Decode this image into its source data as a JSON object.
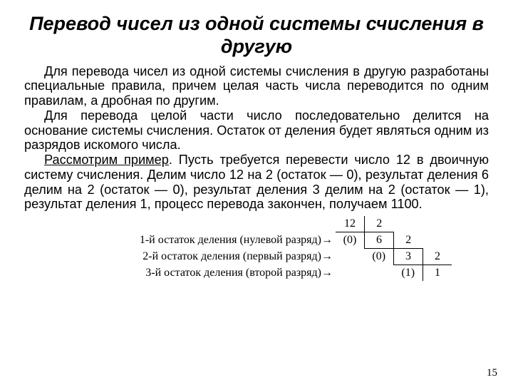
{
  "title": "Перевод чисел из одной системы счисления в другую",
  "para1": "Для перевода чисел из одной системы счисления в другую разработаны специальные правила, причем целая часть числа переводится по одним правилам, а дробная по другим.",
  "para2": "Для перевода целой части число последовательно де­лится на основание системы счисления. Остаток от деле­ния будет являться одним из разрядов искомого числа.",
  "para3_lead": "Рассмотрим пример",
  "para3_rest": ". Пусть требуется перевести число 12 в двоичную систему счисления. Делим число 12 на 2 (остаток — 0), результат деления 6 делим на 2 (остаток — 0), результат деления 3 делим на 2 (остаток — 1), резуль­тат деления 1, процесс перевода закончен, получаем 1100.",
  "division": {
    "row0": {
      "label": "",
      "c1": "12",
      "c2": "2",
      "c3": "",
      "c4": "",
      "c5": ""
    },
    "row1": {
      "label": "1-й остаток деления (нулевой разряд)→",
      "c1": "(0)",
      "c2": "6",
      "c3": "2",
      "c4": "",
      "c5": ""
    },
    "row2": {
      "label": "2-й остаток деления (первый разряд)→",
      "c1": "",
      "c2": "(0)",
      "c3": "3",
      "c4": "2",
      "c5": ""
    },
    "row3": {
      "label": "3-й остаток деления (второй разряд)→",
      "c1": "",
      "c2": "",
      "c3": "(1)",
      "c4": "1",
      "c5": ""
    }
  },
  "pagenum": "15"
}
